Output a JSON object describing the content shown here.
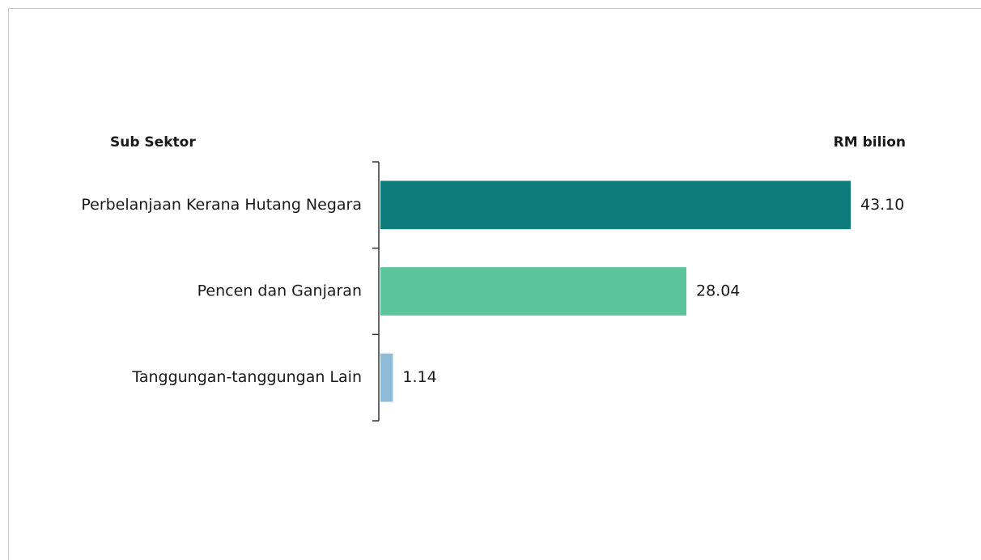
{
  "chart_data": {
    "type": "bar",
    "orientation": "horizontal",
    "category_header": "Sub Sektor",
    "value_header": "RM bilion",
    "categories": [
      "Perbelanjaan Kerana Hutang Negara",
      "Pencen dan Ganjaran",
      "Tanggungan-tanggungan Lain"
    ],
    "values": [
      43.1,
      28.04,
      1.14
    ],
    "value_labels": [
      "43.10",
      "28.04",
      "1.14"
    ],
    "colors": [
      "#0e7c7b",
      "#5cc49c",
      "#8fbcd6"
    ]
  }
}
